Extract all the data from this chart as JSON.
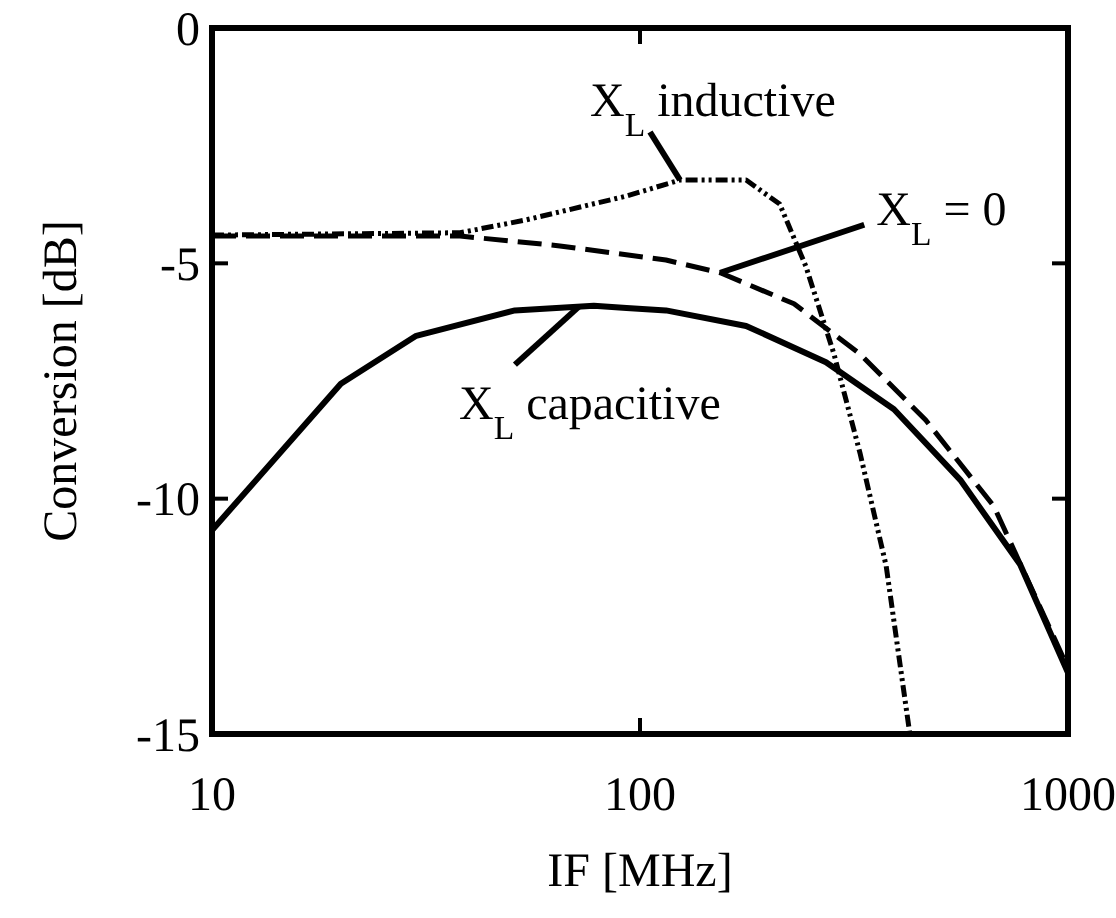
{
  "chart_data": {
    "type": "line",
    "xlabel": "IF [MHz]",
    "ylabel": "Conversion [dB]",
    "log": "x",
    "xlim": [
      10,
      1000
    ],
    "xticks": [
      10,
      100,
      1000
    ],
    "ylim": [
      -15,
      0
    ],
    "yticks": [
      -15,
      -10,
      -5,
      0
    ],
    "grid": false,
    "annotations": [
      {
        "text": "X$_{L}$ inductive",
        "x": 124,
        "y": -3.23
      },
      {
        "text": "X$_{L}$ = 0",
        "x": 154,
        "y": -5.2
      },
      {
        "text": "X$_{L}$ capacitive",
        "x": 72,
        "y": -5.92
      }
    ],
    "series": [
      {
        "color": "#000000",
        "line_style": "dotted",
        "x": [
          10,
          38,
          54,
          93,
          124,
          177,
          212,
          244,
          284,
          327,
          376,
          427
        ],
        "values": [
          -4.4,
          -4.35,
          -4.08,
          -3.57,
          -3.23,
          -3.23,
          -3.74,
          -5.06,
          -6.93,
          -9.05,
          -11.43,
          -15
        ]
      },
      {
        "color": "#000000",
        "line_style": "dashed",
        "x": [
          10,
          38,
          65,
          115,
          154,
          229,
          327,
          465,
          671,
          1000
        ],
        "values": [
          -4.42,
          -4.42,
          -4.63,
          -4.93,
          -5.2,
          -5.86,
          -6.93,
          -8.33,
          -10.16,
          -13.6
        ]
      },
      {
        "color": "#000000",
        "line_style": "solid",
        "x": [
          10,
          20,
          30,
          51,
          78,
          93,
          115,
          177,
          272,
          392,
          560,
          773,
          1000
        ],
        "values": [
          -10.67,
          -7.56,
          -6.54,
          -6.0,
          -5.9,
          -5.95,
          -6.0,
          -6.33,
          -7.1,
          -8.1,
          -9.6,
          -11.4,
          -13.7
        ]
      }
    ]
  }
}
